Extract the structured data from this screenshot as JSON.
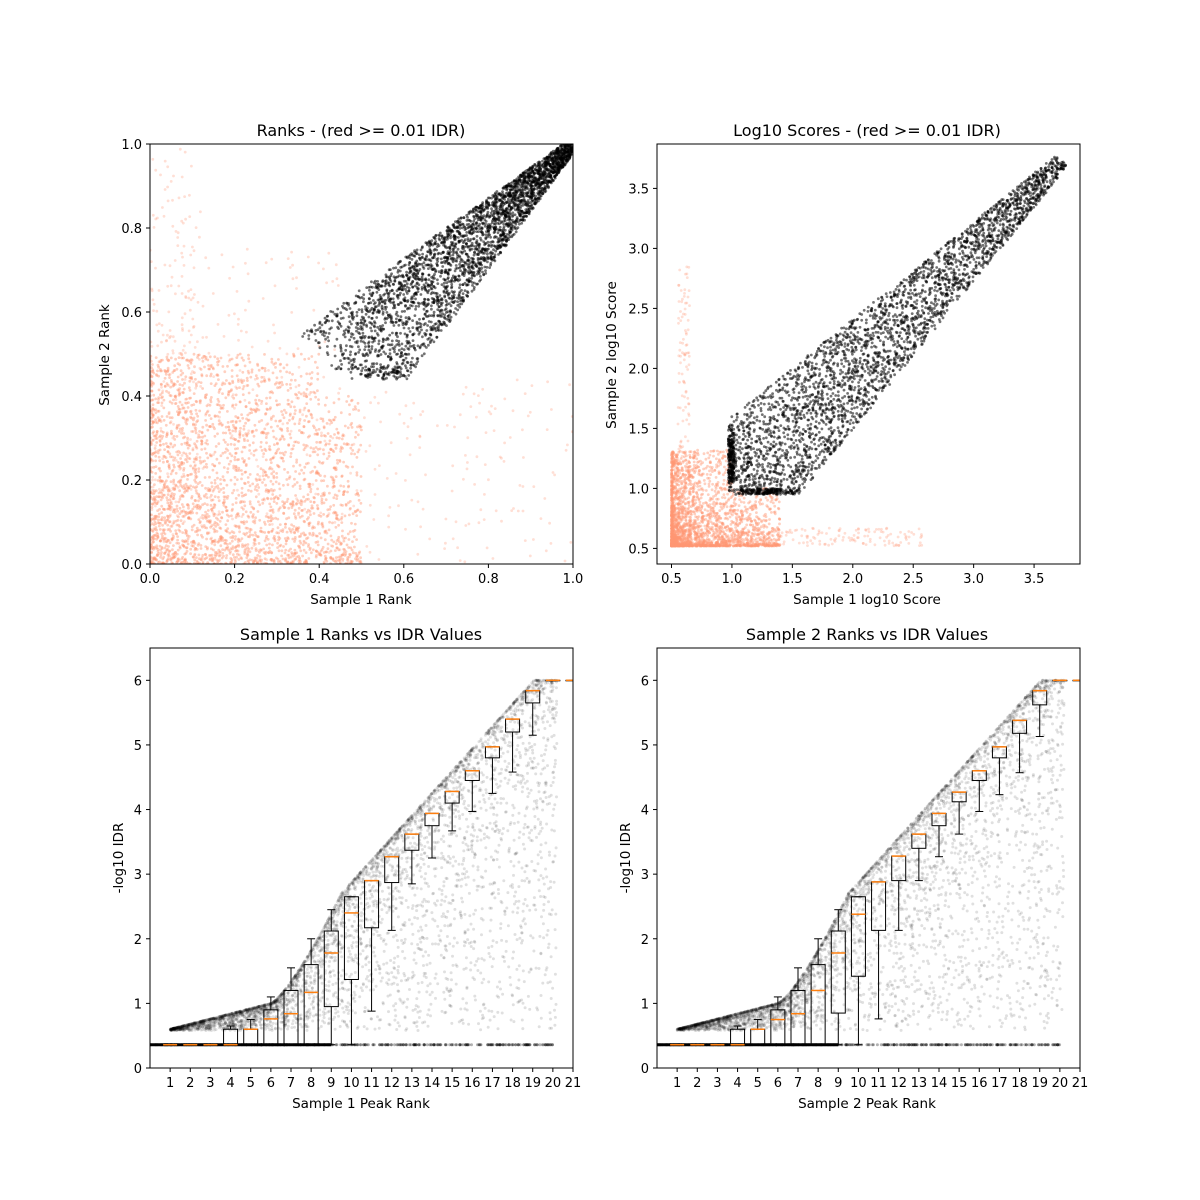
{
  "chart_data": [
    {
      "id": "ranks",
      "type": "scatter",
      "title": "Ranks - (red >= 0.01 IDR)",
      "xlabel": "Sample 1 Rank",
      "ylabel": "Sample 2 Rank",
      "xlim": [
        0.0,
        1.0
      ],
      "ylim": [
        0.0,
        1.0
      ],
      "xticks": [
        "0.0",
        "0.2",
        "0.4",
        "0.6",
        "0.8",
        "1.0"
      ],
      "yticks": [
        "0.0",
        "0.2",
        "0.4",
        "0.6",
        "0.8",
        "1.0"
      ],
      "grid": false,
      "series": [
        {
          "color": "#ff9673",
          "threshold": "IDR >= 0.01",
          "points": [
            [
              0.05,
              0.05
            ],
            [
              0.12,
              0.08
            ],
            [
              0.2,
              0.1
            ],
            [
              0.3,
              0.05
            ],
            [
              0.08,
              0.2
            ],
            [
              0.18,
              0.25
            ],
            [
              0.28,
              0.18
            ],
            [
              0.35,
              0.28
            ],
            [
              0.4,
              0.38
            ],
            [
              0.45,
              0.4
            ],
            [
              0.1,
              0.35
            ],
            [
              0.22,
              0.4
            ],
            [
              0.5,
              0.3
            ],
            [
              0.6,
              0.2
            ],
            [
              0.7,
              0.1
            ],
            [
              0.05,
              0.6
            ],
            [
              0.1,
              0.9
            ],
            [
              0.9,
              0.15
            ],
            [
              0.38,
              0.45
            ],
            [
              0.48,
              0.5
            ]
          ]
        },
        {
          "color": "#000000",
          "threshold": "IDR < 0.01",
          "points": [
            [
              0.45,
              0.44
            ],
            [
              0.5,
              0.5
            ],
            [
              0.55,
              0.55
            ],
            [
              0.6,
              0.6
            ],
            [
              0.65,
              0.65
            ],
            [
              0.7,
              0.7
            ],
            [
              0.75,
              0.75
            ],
            [
              0.8,
              0.8
            ],
            [
              0.85,
              0.85
            ],
            [
              0.9,
              0.9
            ],
            [
              0.95,
              0.95
            ],
            [
              1.0,
              1.0
            ],
            [
              0.55,
              0.47
            ],
            [
              0.65,
              0.55
            ],
            [
              0.7,
              0.62
            ],
            [
              0.8,
              0.72
            ],
            [
              0.9,
              0.83
            ],
            [
              0.5,
              0.58
            ],
            [
              0.6,
              0.7
            ],
            [
              0.75,
              0.85
            ]
          ]
        }
      ]
    },
    {
      "id": "scores",
      "type": "scatter",
      "title": "Log10 Scores - (red >= 0.01 IDR)",
      "xlabel": "Sample 1 log10 Score",
      "ylabel": "Sample 2 log10 Score",
      "xlim": [
        0.38,
        3.88
      ],
      "ylim": [
        0.37,
        3.87
      ],
      "xticks": [
        "0.5",
        "1.0",
        "1.5",
        "2.0",
        "2.5",
        "3.0",
        "3.5"
      ],
      "yticks": [
        "0.5",
        "1.0",
        "1.5",
        "2.0",
        "2.5",
        "3.0",
        "3.5"
      ],
      "grid": false,
      "series": [
        {
          "color": "#ff9673",
          "threshold": "IDR >= 0.01",
          "points": [
            [
              0.52,
              0.52
            ],
            [
              0.6,
              0.55
            ],
            [
              0.7,
              0.6
            ],
            [
              0.8,
              0.7
            ],
            [
              0.9,
              0.8
            ],
            [
              0.55,
              0.9
            ],
            [
              0.6,
              1.2
            ],
            [
              0.6,
              2.9
            ],
            [
              1.2,
              0.53
            ],
            [
              1.5,
              0.6
            ],
            [
              2.0,
              0.58
            ],
            [
              2.5,
              0.53
            ],
            [
              0.95,
              1.05
            ],
            [
              0.8,
              1.3
            ]
          ]
        },
        {
          "color": "#000000",
          "threshold": "IDR < 0.01",
          "points": [
            [
              1.0,
              1.0
            ],
            [
              1.2,
              1.2
            ],
            [
              1.5,
              1.5
            ],
            [
              1.8,
              1.8
            ],
            [
              2.0,
              2.0
            ],
            [
              2.2,
              2.2
            ],
            [
              2.5,
              2.5
            ],
            [
              2.8,
              2.8
            ],
            [
              3.0,
              3.0
            ],
            [
              3.3,
              3.3
            ],
            [
              3.6,
              3.6
            ],
            [
              3.7,
              3.7
            ],
            [
              1.5,
              1.2
            ],
            [
              2.0,
              1.7
            ],
            [
              1.3,
              1.6
            ],
            [
              1.8,
              2.1
            ]
          ]
        }
      ]
    },
    {
      "id": "s1idr",
      "type": "scatter",
      "title": "Sample 1 Ranks vs IDR Values",
      "xlabel": "Sample 1 Peak Rank",
      "ylabel": "-log10 IDR",
      "xlim": [
        0,
        21
      ],
      "ylim": [
        0,
        6.5
      ],
      "xticks": [
        "1",
        "2",
        "3",
        "4",
        "5",
        "6",
        "7",
        "8",
        "9",
        "10",
        "11",
        "12",
        "13",
        "14",
        "15",
        "16",
        "17",
        "18",
        "19",
        "20",
        "21"
      ],
      "yticks": [
        "0",
        "1",
        "2",
        "3",
        "4",
        "5",
        "6"
      ],
      "grid": false,
      "series": [
        {
          "color": "#000000",
          "name_shown": false,
          "points": [
            [
              0.5,
              0.36
            ],
            [
              2,
              0.6
            ],
            [
              4,
              0.8
            ],
            [
              6,
              1.1
            ],
            [
              7,
              1.5
            ],
            [
              8,
              1.9
            ],
            [
              9,
              2.5
            ],
            [
              10,
              2.9
            ],
            [
              11,
              3.3
            ],
            [
              12,
              3.7
            ],
            [
              13,
              4.0
            ],
            [
              14,
              4.3
            ],
            [
              15,
              4.6
            ],
            [
              16,
              5.0
            ],
            [
              17,
              5.3
            ],
            [
              18,
              5.7
            ],
            [
              19,
              6.0
            ],
            [
              20,
              6.0
            ]
          ]
        }
      ],
      "boxes": [
        {
          "x": 1,
          "q1": 0.36,
          "med": 0.36,
          "q3": 0.36,
          "lo": 0.36,
          "hi": 0.36
        },
        {
          "x": 2,
          "q1": 0.36,
          "med": 0.36,
          "q3": 0.36,
          "lo": 0.36,
          "hi": 0.36
        },
        {
          "x": 3,
          "q1": 0.36,
          "med": 0.36,
          "q3": 0.36,
          "lo": 0.36,
          "hi": 0.36
        },
        {
          "x": 4,
          "q1": 0.36,
          "med": 0.36,
          "q3": 0.6,
          "lo": 0.36,
          "hi": 0.65
        },
        {
          "x": 5,
          "q1": 0.36,
          "med": 0.6,
          "q3": 0.6,
          "lo": 0.36,
          "hi": 0.75
        },
        {
          "x": 6,
          "q1": 0.36,
          "med": 0.76,
          "q3": 0.9,
          "lo": 0.36,
          "hi": 1.1
        },
        {
          "x": 7,
          "q1": 0.36,
          "med": 0.84,
          "q3": 1.2,
          "lo": 0.36,
          "hi": 1.55
        },
        {
          "x": 8,
          "q1": 0.36,
          "med": 1.17,
          "q3": 1.6,
          "lo": 0.36,
          "hi": 2.0
        },
        {
          "x": 9,
          "q1": 0.95,
          "med": 1.78,
          "q3": 2.12,
          "lo": 0.36,
          "hi": 2.45
        },
        {
          "x": 10,
          "q1": 1.37,
          "med": 2.4,
          "q3": 2.65,
          "lo": 0.36,
          "hi": 2.65
        },
        {
          "x": 11,
          "q1": 2.17,
          "med": 2.9,
          "q3": 2.9,
          "lo": 0.88,
          "hi": 2.9
        },
        {
          "x": 12,
          "q1": 2.87,
          "med": 3.27,
          "q3": 3.27,
          "lo": 2.13,
          "hi": 3.27
        },
        {
          "x": 13,
          "q1": 3.37,
          "med": 3.62,
          "q3": 3.62,
          "lo": 2.85,
          "hi": 3.62
        },
        {
          "x": 14,
          "q1": 3.75,
          "med": 3.94,
          "q3": 3.94,
          "lo": 3.25,
          "hi": 3.94
        },
        {
          "x": 15,
          "q1": 4.1,
          "med": 4.28,
          "q3": 4.28,
          "lo": 3.67,
          "hi": 4.28
        },
        {
          "x": 16,
          "q1": 4.45,
          "med": 4.6,
          "q3": 4.6,
          "lo": 3.97,
          "hi": 4.6
        },
        {
          "x": 17,
          "q1": 4.8,
          "med": 4.97,
          "q3": 4.97,
          "lo": 4.25,
          "hi": 4.97
        },
        {
          "x": 18,
          "q1": 5.2,
          "med": 5.4,
          "q3": 5.4,
          "lo": 4.58,
          "hi": 5.4
        },
        {
          "x": 19,
          "q1": 5.65,
          "med": 5.84,
          "q3": 5.84,
          "lo": 5.15,
          "hi": 5.84
        },
        {
          "x": 20,
          "q1": 6.0,
          "med": 6.0,
          "q3": 6.0,
          "lo": 6.0,
          "hi": 6.0
        },
        {
          "x": 21,
          "q1": 6.0,
          "med": 6.0,
          "q3": 6.0,
          "lo": 6.0,
          "hi": 6.0
        }
      ]
    },
    {
      "id": "s2idr",
      "type": "scatter",
      "title": "Sample 2 Ranks vs IDR Values",
      "xlabel": "Sample 2 Peak Rank",
      "ylabel": "-log10 IDR",
      "xlim": [
        0,
        21
      ],
      "ylim": [
        0,
        6.5
      ],
      "xticks": [
        "1",
        "2",
        "3",
        "4",
        "5",
        "6",
        "7",
        "8",
        "9",
        "10",
        "11",
        "12",
        "13",
        "14",
        "15",
        "16",
        "17",
        "18",
        "19",
        "20",
        "21"
      ],
      "yticks": [
        "0",
        "1",
        "2",
        "3",
        "4",
        "5",
        "6"
      ],
      "grid": false,
      "series": [
        {
          "color": "#000000",
          "name_shown": false,
          "points": [
            [
              0.5,
              0.36
            ],
            [
              2,
              0.6
            ],
            [
              4,
              0.8
            ],
            [
              6,
              1.1
            ],
            [
              7,
              1.5
            ],
            [
              8,
              1.9
            ],
            [
              9,
              2.5
            ],
            [
              10,
              2.9
            ],
            [
              11,
              3.3
            ],
            [
              12,
              3.7
            ],
            [
              13,
              4.0
            ],
            [
              14,
              4.3
            ],
            [
              15,
              4.6
            ],
            [
              16,
              5.0
            ],
            [
              17,
              5.3
            ],
            [
              18,
              5.7
            ],
            [
              19,
              6.0
            ],
            [
              20,
              6.0
            ]
          ]
        }
      ],
      "boxes": [
        {
          "x": 1,
          "q1": 0.36,
          "med": 0.36,
          "q3": 0.36,
          "lo": 0.36,
          "hi": 0.36
        },
        {
          "x": 2,
          "q1": 0.36,
          "med": 0.36,
          "q3": 0.36,
          "lo": 0.36,
          "hi": 0.36
        },
        {
          "x": 3,
          "q1": 0.36,
          "med": 0.36,
          "q3": 0.36,
          "lo": 0.36,
          "hi": 0.36
        },
        {
          "x": 4,
          "q1": 0.36,
          "med": 0.36,
          "q3": 0.6,
          "lo": 0.36,
          "hi": 0.65
        },
        {
          "x": 5,
          "q1": 0.36,
          "med": 0.6,
          "q3": 0.6,
          "lo": 0.36,
          "hi": 0.75
        },
        {
          "x": 6,
          "q1": 0.36,
          "med": 0.75,
          "q3": 0.9,
          "lo": 0.36,
          "hi": 1.1
        },
        {
          "x": 7,
          "q1": 0.36,
          "med": 0.84,
          "q3": 1.2,
          "lo": 0.36,
          "hi": 1.55
        },
        {
          "x": 8,
          "q1": 0.36,
          "med": 1.2,
          "q3": 1.6,
          "lo": 0.36,
          "hi": 2.0
        },
        {
          "x": 9,
          "q1": 0.85,
          "med": 1.78,
          "q3": 2.12,
          "lo": 0.36,
          "hi": 2.45
        },
        {
          "x": 10,
          "q1": 1.42,
          "med": 2.38,
          "q3": 2.65,
          "lo": 0.36,
          "hi": 2.65
        },
        {
          "x": 11,
          "q1": 2.13,
          "med": 2.88,
          "q3": 2.88,
          "lo": 0.76,
          "hi": 2.88
        },
        {
          "x": 12,
          "q1": 2.9,
          "med": 3.28,
          "q3": 3.28,
          "lo": 2.13,
          "hi": 3.28
        },
        {
          "x": 13,
          "q1": 3.4,
          "med": 3.62,
          "q3": 3.62,
          "lo": 2.9,
          "hi": 3.62
        },
        {
          "x": 14,
          "q1": 3.75,
          "med": 3.94,
          "q3": 3.94,
          "lo": 3.27,
          "hi": 3.94
        },
        {
          "x": 15,
          "q1": 4.12,
          "med": 4.27,
          "q3": 4.27,
          "lo": 3.62,
          "hi": 4.27
        },
        {
          "x": 16,
          "q1": 4.45,
          "med": 4.6,
          "q3": 4.6,
          "lo": 3.97,
          "hi": 4.6
        },
        {
          "x": 17,
          "q1": 4.8,
          "med": 4.97,
          "q3": 4.97,
          "lo": 4.23,
          "hi": 4.97
        },
        {
          "x": 18,
          "q1": 5.18,
          "med": 5.38,
          "q3": 5.38,
          "lo": 4.57,
          "hi": 5.38
        },
        {
          "x": 19,
          "q1": 5.62,
          "med": 5.84,
          "q3": 5.84,
          "lo": 5.13,
          "hi": 5.84
        },
        {
          "x": 20,
          "q1": 6.0,
          "med": 6.0,
          "q3": 6.0,
          "lo": 6.0,
          "hi": 6.0
        },
        {
          "x": 21,
          "q1": 6.0,
          "med": 6.0,
          "q3": 6.0,
          "lo": 6.0,
          "hi": 6.0
        }
      ]
    }
  ]
}
